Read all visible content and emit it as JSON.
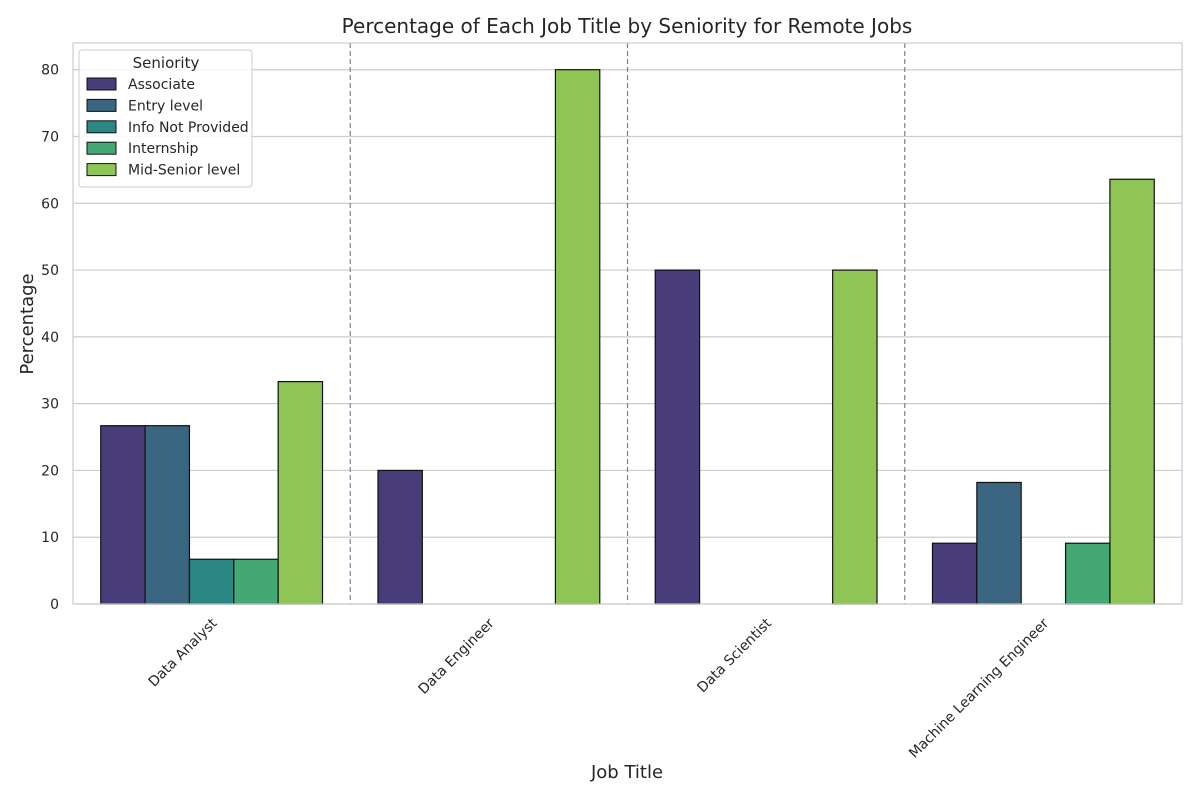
{
  "chart_data": {
    "type": "bar",
    "title": "Percentage of Each Job Title by Seniority for Remote Jobs",
    "xlabel": "Job Title",
    "ylabel": "Percentage",
    "categories": [
      "Data Analyst",
      "Data Engineer",
      "Data Scientist",
      "Machine Learning Engineer"
    ],
    "series": [
      {
        "name": "Associate",
        "color": "#483d78",
        "values": [
          26.7,
          20,
          50,
          9.1
        ]
      },
      {
        "name": "Entry level",
        "color": "#3b6681",
        "values": [
          26.7,
          0,
          0,
          18.2
        ]
      },
      {
        "name": "Info Not Provided",
        "color": "#2a8783",
        "values": [
          6.7,
          0,
          0,
          0
        ]
      },
      {
        "name": "Internship",
        "color": "#43a873",
        "values": [
          6.7,
          0,
          0,
          9.1
        ]
      },
      {
        "name": "Mid-Senior level",
        "color": "#8fc554",
        "values": [
          33.3,
          80,
          50,
          63.6
        ]
      }
    ],
    "ylim": [
      0,
      84
    ],
    "yticks": [
      0,
      10,
      20,
      30,
      40,
      50,
      60,
      70,
      80
    ],
    "grid": "horizontal",
    "separators": "dashed vertical lines between categories",
    "legend": {
      "title": "Seniority",
      "placement": "top-left"
    }
  }
}
